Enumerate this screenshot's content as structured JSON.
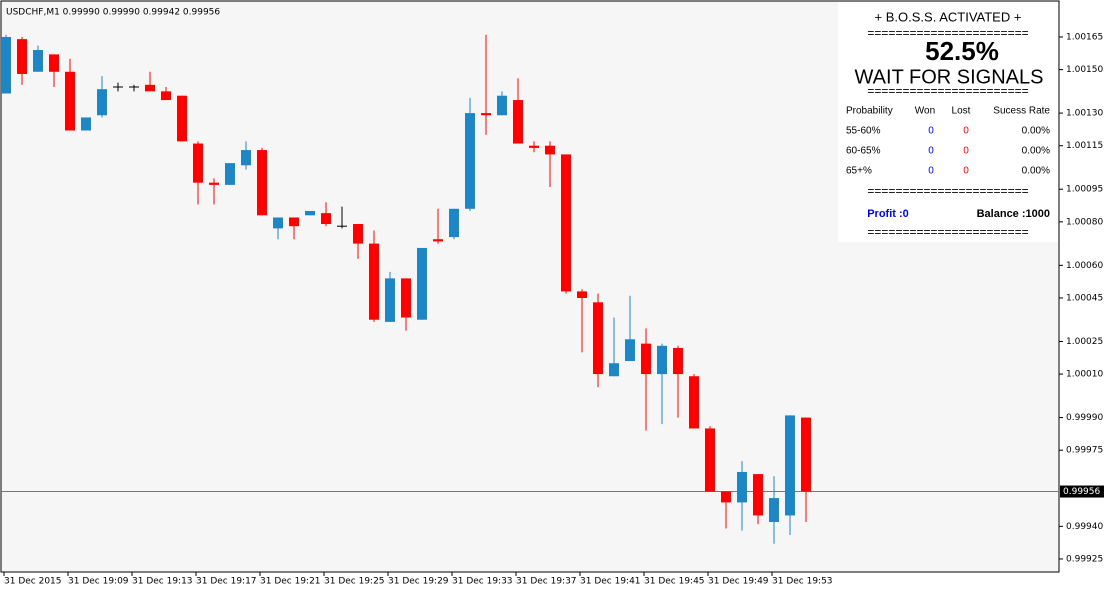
{
  "chart_data": {
    "type": "candlestick",
    "header": "USDCHF,M1  0.99990 0.99990 0.99942 0.99956",
    "categories": [
      "31 Dec 2015",
      null,
      null,
      null,
      "31 Dec 19:09",
      null,
      null,
      null,
      "31 Dec 19:13",
      null,
      null,
      null,
      "31 Dec 19:17",
      null,
      null,
      null,
      "31 Dec 19:21",
      null,
      null,
      null,
      "31 Dec 19:25",
      null,
      null,
      null,
      "31 Dec 19:29",
      null,
      null,
      null,
      "31 Dec 19:33",
      null,
      null,
      null,
      "31 Dec 19:37",
      null,
      null,
      null,
      "31 Dec 19:41",
      null,
      null,
      null,
      "31 Dec 19:45",
      null,
      null,
      null,
      "31 Dec 19:49",
      null,
      null,
      null,
      "31 Dec 19:53",
      null,
      null
    ],
    "open": [
      1.00139,
      1.00164,
      1.00149,
      1.00157,
      1.00149,
      1.00122,
      1.00129,
      1.00142,
      1.00142,
      1.00143,
      1.0014,
      1.00138,
      1.00116,
      1.00098,
      1.00097,
      1.00106,
      1.00113,
      1.00077,
      1.00082,
      1.00083,
      1.00084,
      1.00078,
      1.00079,
      1.0007,
      1.00034,
      1.00054,
      1.00035,
      1.00072,
      1.00073,
      1.00086,
      1.0013,
      1.00129,
      1.00136,
      1.00115,
      1.00115,
      1.00111,
      1.00048,
      1.00043,
      1.00009,
      1.00016,
      1.00024,
      1.0001,
      1.00022,
      1.00009,
      0.99985,
      0.99956,
      0.99951,
      0.99964,
      0.99942,
      0.99945,
      0.9999
    ],
    "high": [
      1.00166,
      1.00165,
      1.00161,
      1.00157,
      1.00155,
      1.00128,
      1.00147,
      1.00144,
      1.00143,
      1.00149,
      1.00142,
      1.00138,
      1.00117,
      1.001,
      1.00107,
      1.00117,
      1.00114,
      1.00082,
      1.00082,
      1.00085,
      1.00089,
      1.00087,
      1.00079,
      1.00076,
      1.00057,
      1.00054,
      1.00068,
      1.00086,
      1.00086,
      1.00137,
      1.00166,
      1.0014,
      1.00146,
      1.00117,
      1.00117,
      1.00111,
      1.00049,
      1.00047,
      1.00036,
      1.00046,
      1.00031,
      1.00024,
      1.00023,
      1.0001,
      0.99986,
      0.99956,
      0.9997,
      0.99964,
      0.99963,
      0.99991,
      0.9999
    ],
    "low": [
      1.00139,
      1.00143,
      1.00149,
      1.00142,
      1.00122,
      1.00122,
      1.00128,
      1.0014,
      1.0014,
      1.0014,
      1.00136,
      1.00117,
      1.00088,
      1.00088,
      1.00097,
      1.00104,
      1.00083,
      1.00072,
      1.00072,
      1.00083,
      1.00078,
      1.00077,
      1.00063,
      1.00034,
      1.00034,
      1.0003,
      1.00035,
      1.0007,
      1.00072,
      1.00085,
      1.0012,
      1.00129,
      1.00116,
      1.00112,
      1.00096,
      1.00047,
      1.0002,
      1.00004,
      1.00009,
      1.00016,
      0.99984,
      0.99987,
      0.9999,
      0.99985,
      0.99956,
      0.99939,
      0.99938,
      0.99941,
      0.99932,
      0.99936,
      0.99942
    ],
    "close": [
      1.00165,
      1.00148,
      1.00159,
      1.00149,
      1.00122,
      1.00128,
      1.00141,
      1.00142,
      1.00142,
      1.0014,
      1.00136,
      1.00117,
      1.00098,
      1.00097,
      1.00107,
      1.00113,
      1.00083,
      1.00082,
      1.00078,
      1.00085,
      1.00079,
      1.00078,
      1.0007,
      1.00035,
      1.00054,
      1.00036,
      1.00068,
      1.00071,
      1.00086,
      1.0013,
      1.00129,
      1.00138,
      1.00116,
      1.00114,
      1.00111,
      1.00048,
      1.00045,
      1.0001,
      1.00015,
      1.00026,
      1.0001,
      1.00023,
      1.0001,
      0.99985,
      0.99956,
      0.99951,
      0.99965,
      0.99945,
      0.99953,
      0.99991,
      0.99956
    ],
    "colors": {
      "up": "#1f86c6",
      "down": "#ff0000",
      "doji": "#000000"
    },
    "ylim": [
      0.99919,
      1.00182
    ],
    "yticks": [
      {
        "value": 1.00165,
        "label": "1.00165"
      },
      {
        "value": 1.0015,
        "label": "1.00150"
      },
      {
        "value": 1.0013,
        "label": "1.00130"
      },
      {
        "value": 1.00115,
        "label": "1.00115"
      },
      {
        "value": 1.00095,
        "label": "1.00095"
      },
      {
        "value": 1.0008,
        "label": "1.00080"
      },
      {
        "value": 1.0006,
        "label": "1.00060"
      },
      {
        "value": 1.00045,
        "label": "1.00045"
      },
      {
        "value": 1.00025,
        "label": "1.00025"
      },
      {
        "value": 1.0001,
        "label": "1.00010"
      },
      {
        "value": 0.9999,
        "label": "0.99990"
      },
      {
        "value": 0.99975,
        "label": "0.99975"
      },
      {
        "value": 0.9994,
        "label": "0.99940"
      },
      {
        "value": 0.99925,
        "label": "0.99925"
      }
    ],
    "current_price": {
      "value": 0.99956,
      "label": "0.99956"
    },
    "grid": false
  },
  "panel": {
    "title": "+ B.O.S.S. ACTIVATED +",
    "separators": [
      "=======================",
      "=======================",
      "=======================",
      "======================="
    ],
    "percent": "52.5%",
    "status": "WAIT FOR SIGNALS",
    "table": {
      "headers": [
        "Probability",
        "Won",
        "Lost",
        "Sucess Rate"
      ],
      "rows": [
        [
          "55-60%",
          0,
          0,
          "0.00%"
        ],
        [
          "60-65%",
          0,
          0,
          "0.00%"
        ],
        [
          "65+%",
          0,
          0,
          "0.00%"
        ]
      ]
    },
    "profit": "Profit :0",
    "balance": "Balance :1000"
  }
}
